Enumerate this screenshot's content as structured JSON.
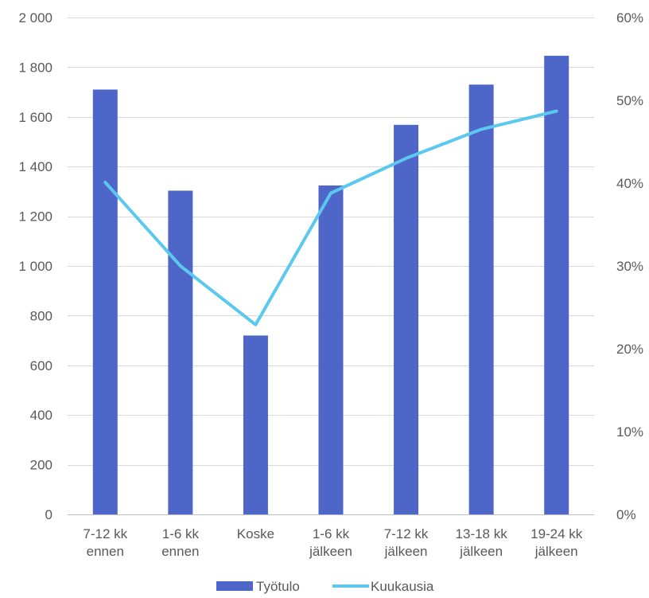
{
  "chart_data": {
    "type": "bar",
    "categories": [
      [
        "7-12 kk",
        "ennen"
      ],
      [
        "1-6 kk",
        "ennen"
      ],
      [
        "Koske"
      ],
      [
        "1-6 kk",
        "jälkeen"
      ],
      [
        "7-12 kk",
        "jälkeen"
      ],
      [
        "13-18 kk",
        "jälkeen"
      ],
      [
        "19-24 kk",
        "jälkeen"
      ]
    ],
    "series": [
      {
        "name": "Työtulo",
        "type": "bar",
        "axis": "left",
        "color": "#4f66c9",
        "values": [
          1710,
          1303,
          720,
          1324,
          1568,
          1730,
          1846
        ]
      },
      {
        "name": "Kuukausia",
        "type": "line",
        "axis": "right",
        "color": "#5bc8ef",
        "values": [
          0.401,
          0.3,
          0.229,
          0.388,
          0.43,
          0.465,
          0.487
        ]
      }
    ],
    "y_left": {
      "lim": [
        0,
        2000
      ],
      "ticks": [
        0,
        200,
        400,
        600,
        800,
        1000,
        1200,
        1400,
        1600,
        1800,
        2000
      ],
      "tick_labels": [
        "0",
        "200",
        "400",
        "600",
        "800",
        "1 000",
        "1 200",
        "1 400",
        "1 600",
        "1 800",
        "2 000"
      ]
    },
    "y_right": {
      "lim": [
        0,
        0.6
      ],
      "ticks": [
        0,
        0.1,
        0.2,
        0.3,
        0.4,
        0.5,
        0.6
      ],
      "tick_labels": [
        "0%",
        "10%",
        "20%",
        "30%",
        "40%",
        "50%",
        "60%"
      ]
    },
    "grid": true,
    "legend": "bottom-center",
    "title": "",
    "xlabel": "",
    "ylabel": ""
  }
}
